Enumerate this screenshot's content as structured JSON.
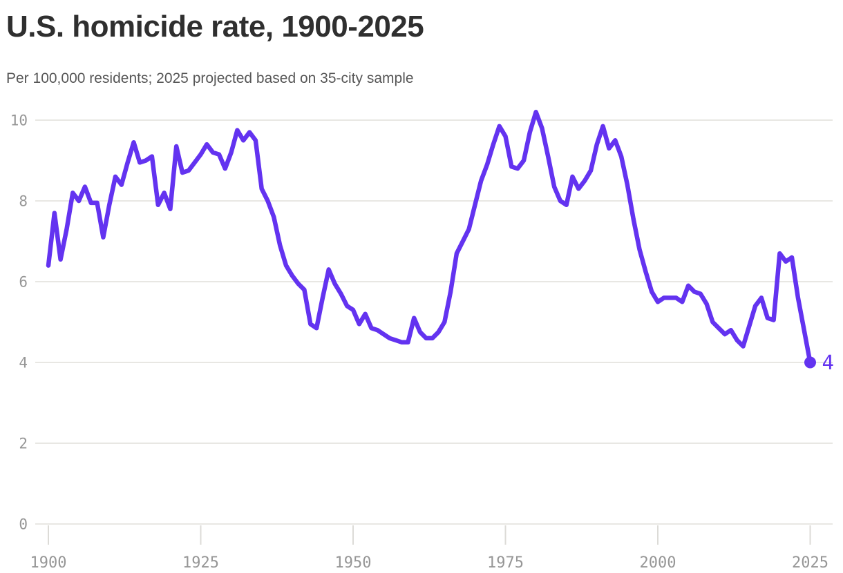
{
  "header": {
    "title": "U.S. homicide rate, 1900-2025",
    "subtitle": "Per 100,000 residents; 2025 projected based on 35-city sample"
  },
  "chart_data": {
    "type": "line",
    "title": "U.S. homicide rate, 1900-2025",
    "subtitle": "Per 100,000 residents; 2025 projected based on 35-city sample",
    "x_start_year": 1900,
    "x_end_year": 2025,
    "x": [
      1900,
      1901,
      1902,
      1903,
      1904,
      1905,
      1906,
      1907,
      1908,
      1909,
      1910,
      1911,
      1912,
      1913,
      1914,
      1915,
      1916,
      1917,
      1918,
      1919,
      1920,
      1921,
      1922,
      1923,
      1924,
      1925,
      1926,
      1927,
      1928,
      1929,
      1930,
      1931,
      1932,
      1933,
      1934,
      1935,
      1936,
      1937,
      1938,
      1939,
      1940,
      1941,
      1942,
      1943,
      1944,
      1945,
      1946,
      1947,
      1948,
      1949,
      1950,
      1951,
      1952,
      1953,
      1954,
      1955,
      1956,
      1957,
      1958,
      1959,
      1960,
      1961,
      1962,
      1963,
      1964,
      1965,
      1966,
      1967,
      1968,
      1969,
      1970,
      1971,
      1972,
      1973,
      1974,
      1975,
      1976,
      1977,
      1978,
      1979,
      1980,
      1981,
      1982,
      1983,
      1984,
      1985,
      1986,
      1987,
      1988,
      1989,
      1990,
      1991,
      1992,
      1993,
      1994,
      1995,
      1996,
      1997,
      1998,
      1999,
      2000,
      2001,
      2002,
      2003,
      2004,
      2005,
      2006,
      2007,
      2008,
      2009,
      2010,
      2011,
      2012,
      2013,
      2014,
      2015,
      2016,
      2017,
      2018,
      2019,
      2020,
      2021,
      2022,
      2023,
      2024,
      2025
    ],
    "values": [
      6.4,
      7.7,
      6.55,
      7.3,
      8.2,
      8.0,
      8.35,
      7.95,
      7.95,
      7.1,
      7.9,
      8.6,
      8.4,
      8.95,
      9.45,
      8.95,
      9.0,
      9.1,
      7.9,
      8.2,
      7.8,
      9.35,
      8.7,
      8.75,
      8.95,
      9.15,
      9.4,
      9.2,
      9.15,
      8.8,
      9.2,
      9.75,
      9.5,
      9.7,
      9.5,
      8.3,
      8.0,
      7.6,
      6.9,
      6.4,
      6.15,
      5.95,
      5.8,
      4.95,
      4.85,
      5.6,
      6.3,
      5.95,
      5.7,
      5.4,
      5.3,
      4.95,
      5.2,
      4.85,
      4.8,
      4.7,
      4.6,
      4.55,
      4.5,
      4.5,
      5.1,
      4.75,
      4.6,
      4.6,
      4.75,
      5.0,
      5.75,
      6.7,
      7.0,
      7.3,
      7.9,
      8.5,
      8.9,
      9.4,
      9.85,
      9.6,
      8.85,
      8.8,
      9.0,
      9.7,
      10.2,
      9.8,
      9.1,
      8.35,
      8.0,
      7.9,
      8.6,
      8.3,
      8.5,
      8.75,
      9.4,
      9.85,
      9.3,
      9.5,
      9.1,
      8.4,
      7.55,
      6.8,
      6.25,
      5.75,
      5.5,
      5.6,
      5.6,
      5.6,
      5.5,
      5.9,
      5.75,
      5.7,
      5.45,
      5.0,
      4.85,
      4.7,
      4.8,
      4.55,
      4.4,
      4.9,
      5.4,
      5.6,
      5.1,
      5.05,
      6.7,
      6.5,
      6.6,
      5.6,
      4.8,
      4.0
    ],
    "x_ticks": [
      1900,
      1925,
      1950,
      1975,
      2000,
      2025
    ],
    "y_ticks": [
      0,
      2,
      4,
      6,
      8,
      10
    ],
    "ylim": [
      0,
      10.5
    ],
    "grid": "horizontal",
    "legend": "none",
    "line_color": "#6333F0",
    "endpoint": {
      "year": 2025,
      "value": 4,
      "label": "4"
    },
    "gridline_color": "#e8e7e3",
    "tick_mark_color": "#dcdbd7",
    "axis_label_color": "#969696"
  }
}
